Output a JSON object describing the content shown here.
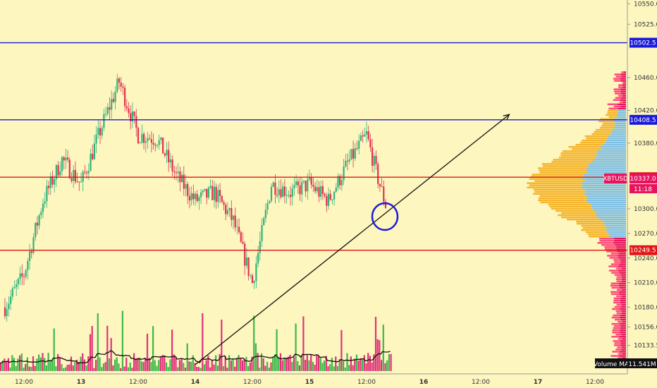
{
  "chart_data": {
    "type": "candlestick",
    "symbol": "XBTUSD",
    "countdown": "11:18",
    "last_price": 10337.0,
    "ylim": [
      10110,
      10565
    ],
    "y_ticks": [
      10133.5,
      10156.0,
      10180.0,
      10210.0,
      10240.0,
      10270.0,
      10300.0,
      10337.0,
      10380.0,
      10420.0,
      10460.0,
      10525.0,
      10550.0
    ],
    "x_ticks": [
      "12:00",
      "13",
      "12:00",
      "14",
      "12:00",
      "15",
      "12:00",
      "16",
      "12:00",
      "17",
      "12:00"
    ],
    "horizontal_levels": [
      {
        "price": 10502.5,
        "label": "10502.5",
        "color": "#1a1adb"
      },
      {
        "price": 10408.5,
        "label": "10408.5",
        "color": "#1a1adb"
      },
      {
        "price": 10338.5,
        "label": "10338.5",
        "color": "#e01515"
      },
      {
        "price": 10249.5,
        "label": "10249.5",
        "color": "#e01515"
      }
    ],
    "trendline": {
      "from": {
        "x": "14 00:00",
        "y": 10110
      },
      "to": {
        "x": "16 18:00",
        "y": 10415
      }
    },
    "volume_indicator": {
      "name": "Volume MA",
      "value": "11.541M"
    },
    "series": [
      {
        "name": "price_path",
        "x": [
          "12 08:00",
          "12 12:00",
          "12 16:00",
          "12 20:00",
          "13 00:00",
          "13 04:00",
          "13 08:00",
          "13 12:00",
          "13 16:00",
          "13 20:00",
          "14 00:00",
          "14 04:00",
          "14 08:00",
          "14 12:00",
          "14 16:00",
          "14 20:00",
          "15 00:00",
          "15 04:00",
          "15 08:00",
          "15 12:00",
          "15 14:00",
          "15 16:00"
        ],
        "y": [
          10180,
          10220,
          10310,
          10360,
          10330,
          10395,
          10455,
          10390,
          10385,
          10340,
          10310,
          10320,
          10285,
          10210,
          10330,
          10320,
          10330,
          10310,
          10355,
          10390,
          10345,
          10305
        ]
      }
    ]
  }
}
